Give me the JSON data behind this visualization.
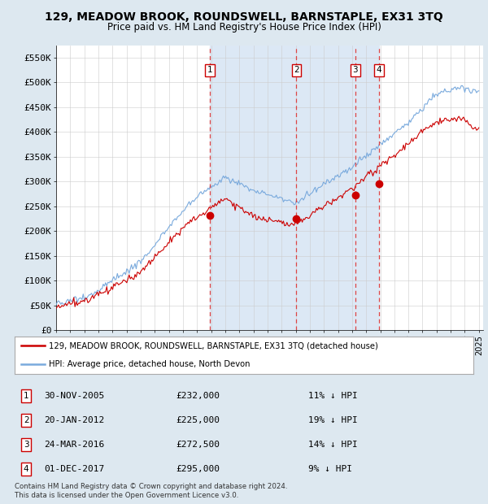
{
  "title": "129, MEADOW BROOK, ROUNDSWELL, BARNSTAPLE, EX31 3TQ",
  "subtitle": "Price paid vs. HM Land Registry's House Price Index (HPI)",
  "ylim": [
    0,
    575000
  ],
  "yticks": [
    0,
    50000,
    100000,
    150000,
    200000,
    250000,
    300000,
    350000,
    400000,
    450000,
    500000,
    550000
  ],
  "ytick_labels": [
    "£0",
    "£50K",
    "£100K",
    "£150K",
    "£200K",
    "£250K",
    "£300K",
    "£350K",
    "£400K",
    "£450K",
    "£500K",
    "£550K"
  ],
  "legend_line1": "129, MEADOW BROOK, ROUNDSWELL, BARNSTAPLE, EX31 3TQ (detached house)",
  "legend_line2": "HPI: Average price, detached house, North Devon",
  "red_line_color": "#cc0000",
  "blue_line_color": "#7aaadd",
  "dashed_line_color": "#dd4444",
  "shade_color": "#dce8f5",
  "footer1": "Contains HM Land Registry data © Crown copyright and database right 2024.",
  "footer2": "This data is licensed under the Open Government Licence v3.0.",
  "transactions": [
    {
      "num": 1,
      "date": "30-NOV-2005",
      "price": "£232,000",
      "hpi": "11% ↓ HPI",
      "year": 2005.92
    },
    {
      "num": 2,
      "date": "20-JAN-2012",
      "price": "£225,000",
      "hpi": "19% ↓ HPI",
      "year": 2012.05
    },
    {
      "num": 3,
      "date": "24-MAR-2016",
      "price": "£272,500",
      "hpi": "14% ↓ HPI",
      "year": 2016.23
    },
    {
      "num": 4,
      "date": "01-DEC-2017",
      "price": "£295,000",
      "hpi": "9% ↓ HPI",
      "year": 2017.92
    }
  ],
  "transaction_prices": [
    232000,
    225000,
    272500,
    295000
  ],
  "background_color": "#dde8f0",
  "plot_bg": "#ffffff",
  "xlim_start": 1995.0,
  "xlim_end": 2025.3
}
